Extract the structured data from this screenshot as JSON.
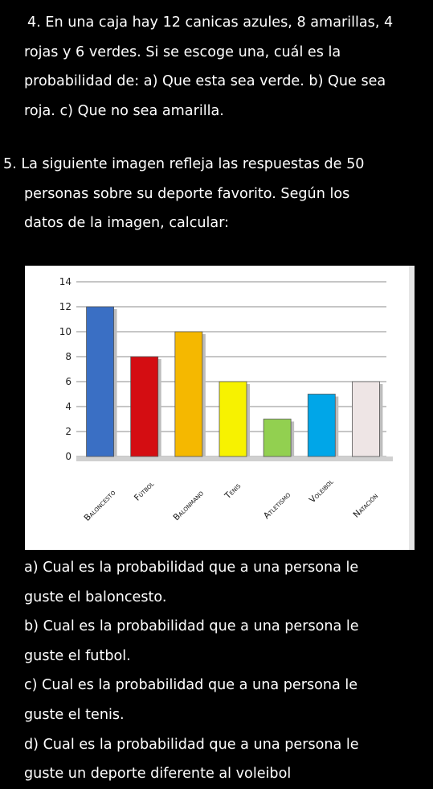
{
  "problem4": {
    "lines": [
      "4. En una caja hay 12 canicas azules, 8 amarillas, 4",
      "rojas y 6 verdes. Si se escoge una, cuál es la",
      "probabilidad de: a) Que esta sea verde. b) Que sea",
      "roja. c) Que no sea amarilla."
    ]
  },
  "problem5": {
    "lines": [
      "5. La siguiente imagen refleja las respuestas de 50",
      "personas sobre su deporte favorito. Según los",
      "datos de la imagen, calcular:"
    ]
  },
  "chart_data": {
    "type": "bar",
    "categories": [
      "Baloncesto",
      "Fútbol",
      "Balonmano",
      "Tenis",
      "Atletismo",
      "Voleibol",
      "Natación"
    ],
    "values": [
      12,
      8,
      10,
      6,
      3,
      5,
      6
    ],
    "colors": [
      "#3a6fc4",
      "#d40d12",
      "#f5b800",
      "#f7f200",
      "#92d050",
      "#00a6e8",
      "#eee5e5"
    ],
    "ylim": [
      0,
      14
    ],
    "yticks": [
      0,
      2,
      4,
      6,
      8,
      10,
      12,
      14
    ],
    "grid": true,
    "title": "",
    "xlabel": "",
    "ylabel": ""
  },
  "questions": {
    "lines": [
      "a) Cual es la probabilidad que a una persona le",
      "guste el baloncesto.",
      " b) Cual es la probabilidad que a una persona le",
      "guste el futbol.",
      "c) Cual es la probabilidad que a una persona le",
      "guste el tenis.",
      "d) Cual es la probabilidad que a una persona le",
      "guste un deporte diferente al voleibol"
    ]
  }
}
